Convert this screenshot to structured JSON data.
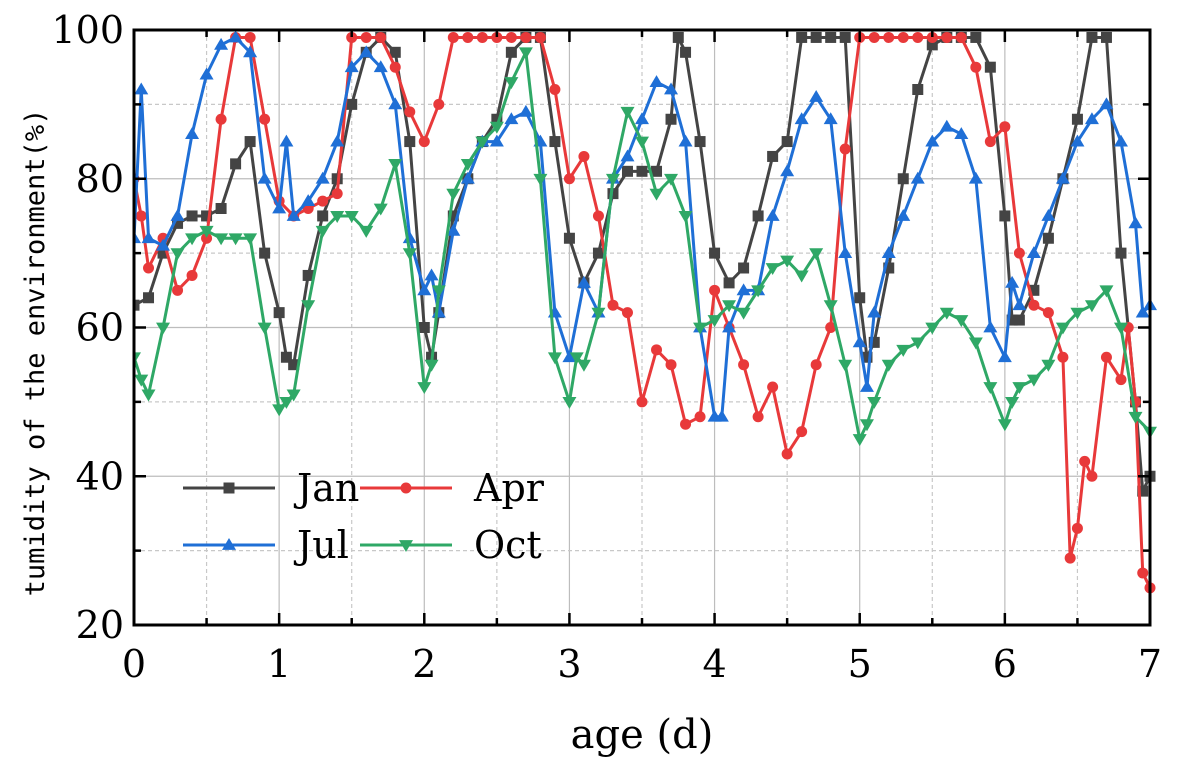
{
  "chart_data": {
    "type": "line",
    "xlabel": "age (d)",
    "ylabel": "tumidity of the environment(%)",
    "xlim": [
      0,
      7
    ],
    "ylim": [
      20,
      100
    ],
    "x_ticks": [
      0,
      1,
      2,
      3,
      4,
      5,
      6,
      7
    ],
    "y_ticks": [
      20,
      40,
      60,
      80,
      100
    ],
    "grid": true,
    "legend_position": "lower-left",
    "series": [
      {
        "name": "Jan",
        "color": "#444444",
        "marker": "square",
        "points": [
          [
            0.0,
            63
          ],
          [
            0.1,
            64
          ],
          [
            0.2,
            70
          ],
          [
            0.3,
            74
          ],
          [
            0.4,
            75
          ],
          [
            0.5,
            75
          ],
          [
            0.6,
            76
          ],
          [
            0.7,
            82
          ],
          [
            0.8,
            85
          ],
          [
            0.9,
            70
          ],
          [
            1.0,
            62
          ],
          [
            1.05,
            56
          ],
          [
            1.1,
            55
          ],
          [
            1.2,
            67
          ],
          [
            1.3,
            75
          ],
          [
            1.4,
            80
          ],
          [
            1.5,
            90
          ],
          [
            1.6,
            97
          ],
          [
            1.7,
            99
          ],
          [
            1.8,
            97
          ],
          [
            1.9,
            85
          ],
          [
            2.0,
            60
          ],
          [
            2.05,
            56
          ],
          [
            2.1,
            62
          ],
          [
            2.2,
            75
          ],
          [
            2.3,
            80
          ],
          [
            2.4,
            85
          ],
          [
            2.5,
            88
          ],
          [
            2.6,
            97
          ],
          [
            2.7,
            99
          ],
          [
            2.8,
            99
          ],
          [
            2.9,
            85
          ],
          [
            3.0,
            72
          ],
          [
            3.1,
            66
          ],
          [
            3.2,
            70
          ],
          [
            3.3,
            78
          ],
          [
            3.4,
            81
          ],
          [
            3.5,
            81
          ],
          [
            3.6,
            81
          ],
          [
            3.7,
            88
          ],
          [
            3.75,
            99
          ],
          [
            3.8,
            97
          ],
          [
            3.9,
            85
          ],
          [
            4.0,
            70
          ],
          [
            4.1,
            66
          ],
          [
            4.2,
            68
          ],
          [
            4.3,
            75
          ],
          [
            4.4,
            83
          ],
          [
            4.5,
            85
          ],
          [
            4.6,
            99
          ],
          [
            4.7,
            99
          ],
          [
            4.8,
            99
          ],
          [
            4.9,
            99
          ],
          [
            5.0,
            64
          ],
          [
            5.05,
            56
          ],
          [
            5.1,
            58
          ],
          [
            5.2,
            68
          ],
          [
            5.3,
            80
          ],
          [
            5.4,
            92
          ],
          [
            5.5,
            98
          ],
          [
            5.6,
            99
          ],
          [
            5.7,
            99
          ],
          [
            5.8,
            99
          ],
          [
            5.9,
            95
          ],
          [
            6.0,
            75
          ],
          [
            6.05,
            61
          ],
          [
            6.1,
            61
          ],
          [
            6.2,
            65
          ],
          [
            6.3,
            72
          ],
          [
            6.4,
            80
          ],
          [
            6.5,
            88
          ],
          [
            6.6,
            99
          ],
          [
            6.7,
            99
          ],
          [
            6.8,
            70
          ],
          [
            6.9,
            50
          ],
          [
            6.95,
            38
          ],
          [
            7.0,
            40
          ]
        ]
      },
      {
        "name": "Apr",
        "color": "#e8393a",
        "marker": "circle",
        "points": [
          [
            0.0,
            80
          ],
          [
            0.05,
            75
          ],
          [
            0.1,
            68
          ],
          [
            0.2,
            72
          ],
          [
            0.3,
            65
          ],
          [
            0.4,
            67
          ],
          [
            0.5,
            72
          ],
          [
            0.6,
            88
          ],
          [
            0.7,
            99
          ],
          [
            0.8,
            99
          ],
          [
            0.9,
            88
          ],
          [
            1.0,
            77
          ],
          [
            1.1,
            75
          ],
          [
            1.2,
            76
          ],
          [
            1.3,
            77
          ],
          [
            1.4,
            78
          ],
          [
            1.5,
            99
          ],
          [
            1.6,
            99
          ],
          [
            1.7,
            99
          ],
          [
            1.8,
            95
          ],
          [
            1.9,
            89
          ],
          [
            2.0,
            85
          ],
          [
            2.1,
            90
          ],
          [
            2.2,
            99
          ],
          [
            2.3,
            99
          ],
          [
            2.4,
            99
          ],
          [
            2.5,
            99
          ],
          [
            2.6,
            99
          ],
          [
            2.7,
            99
          ],
          [
            2.8,
            99
          ],
          [
            2.9,
            92
          ],
          [
            3.0,
            80
          ],
          [
            3.1,
            83
          ],
          [
            3.2,
            75
          ],
          [
            3.3,
            63
          ],
          [
            3.4,
            62
          ],
          [
            3.5,
            50
          ],
          [
            3.6,
            57
          ],
          [
            3.7,
            55
          ],
          [
            3.8,
            47
          ],
          [
            3.9,
            48
          ],
          [
            4.0,
            65
          ],
          [
            4.1,
            60
          ],
          [
            4.2,
            55
          ],
          [
            4.3,
            48
          ],
          [
            4.4,
            52
          ],
          [
            4.5,
            43
          ],
          [
            4.6,
            46
          ],
          [
            4.7,
            55
          ],
          [
            4.8,
            60
          ],
          [
            4.9,
            84
          ],
          [
            5.0,
            99
          ],
          [
            5.1,
            99
          ],
          [
            5.2,
            99
          ],
          [
            5.3,
            99
          ],
          [
            5.4,
            99
          ],
          [
            5.5,
            99
          ],
          [
            5.6,
            99
          ],
          [
            5.7,
            99
          ],
          [
            5.8,
            95
          ],
          [
            5.9,
            85
          ],
          [
            6.0,
            87
          ],
          [
            6.1,
            70
          ],
          [
            6.2,
            63
          ],
          [
            6.3,
            62
          ],
          [
            6.4,
            56
          ],
          [
            6.45,
            29
          ],
          [
            6.5,
            33
          ],
          [
            6.55,
            42
          ],
          [
            6.6,
            40
          ],
          [
            6.7,
            56
          ],
          [
            6.8,
            53
          ],
          [
            6.85,
            60
          ],
          [
            6.9,
            50
          ],
          [
            6.95,
            27
          ],
          [
            7.0,
            25
          ]
        ]
      },
      {
        "name": "Jul",
        "color": "#1f6fd6",
        "marker": "triangle-up",
        "points": [
          [
            0.0,
            72
          ],
          [
            0.05,
            92
          ],
          [
            0.1,
            72
          ],
          [
            0.2,
            71
          ],
          [
            0.3,
            75
          ],
          [
            0.4,
            86
          ],
          [
            0.5,
            94
          ],
          [
            0.6,
            98
          ],
          [
            0.7,
            99
          ],
          [
            0.8,
            97
          ],
          [
            0.9,
            80
          ],
          [
            1.0,
            76
          ],
          [
            1.05,
            85
          ],
          [
            1.1,
            75
          ],
          [
            1.2,
            77
          ],
          [
            1.3,
            80
          ],
          [
            1.4,
            85
          ],
          [
            1.5,
            95
          ],
          [
            1.6,
            97
          ],
          [
            1.7,
            95
          ],
          [
            1.8,
            90
          ],
          [
            1.9,
            72
          ],
          [
            2.0,
            65
          ],
          [
            2.05,
            67
          ],
          [
            2.1,
            62
          ],
          [
            2.2,
            73
          ],
          [
            2.3,
            80
          ],
          [
            2.4,
            85
          ],
          [
            2.5,
            85
          ],
          [
            2.6,
            88
          ],
          [
            2.7,
            89
          ],
          [
            2.8,
            85
          ],
          [
            2.9,
            62
          ],
          [
            3.0,
            56
          ],
          [
            3.1,
            66
          ],
          [
            3.2,
            62
          ],
          [
            3.3,
            80
          ],
          [
            3.4,
            83
          ],
          [
            3.5,
            88
          ],
          [
            3.6,
            93
          ],
          [
            3.7,
            92
          ],
          [
            3.8,
            85
          ],
          [
            3.9,
            60
          ],
          [
            4.0,
            48
          ],
          [
            4.05,
            48
          ],
          [
            4.1,
            60
          ],
          [
            4.2,
            65
          ],
          [
            4.3,
            65
          ],
          [
            4.4,
            75
          ],
          [
            4.5,
            81
          ],
          [
            4.6,
            88
          ],
          [
            4.7,
            91
          ],
          [
            4.8,
            88
          ],
          [
            4.9,
            70
          ],
          [
            5.0,
            58
          ],
          [
            5.05,
            52
          ],
          [
            5.1,
            62
          ],
          [
            5.2,
            70
          ],
          [
            5.3,
            75
          ],
          [
            5.4,
            80
          ],
          [
            5.5,
            85
          ],
          [
            5.6,
            87
          ],
          [
            5.7,
            86
          ],
          [
            5.8,
            80
          ],
          [
            5.9,
            60
          ],
          [
            6.0,
            56
          ],
          [
            6.05,
            66
          ],
          [
            6.1,
            63
          ],
          [
            6.2,
            70
          ],
          [
            6.3,
            75
          ],
          [
            6.4,
            80
          ],
          [
            6.5,
            85
          ],
          [
            6.6,
            88
          ],
          [
            6.7,
            90
          ],
          [
            6.8,
            85
          ],
          [
            6.9,
            74
          ],
          [
            6.95,
            62
          ],
          [
            7.0,
            63
          ]
        ]
      },
      {
        "name": "Oct",
        "color": "#2fa866",
        "marker": "triangle-down",
        "points": [
          [
            0.0,
            56
          ],
          [
            0.05,
            53
          ],
          [
            0.1,
            51
          ],
          [
            0.2,
            60
          ],
          [
            0.3,
            70
          ],
          [
            0.4,
            72
          ],
          [
            0.5,
            73
          ],
          [
            0.6,
            72
          ],
          [
            0.7,
            72
          ],
          [
            0.8,
            72
          ],
          [
            0.9,
            60
          ],
          [
            1.0,
            49
          ],
          [
            1.05,
            50
          ],
          [
            1.1,
            51
          ],
          [
            1.2,
            63
          ],
          [
            1.3,
            73
          ],
          [
            1.4,
            75
          ],
          [
            1.5,
            75
          ],
          [
            1.6,
            73
          ],
          [
            1.7,
            76
          ],
          [
            1.8,
            82
          ],
          [
            1.9,
            70
          ],
          [
            2.0,
            52
          ],
          [
            2.05,
            55
          ],
          [
            2.1,
            65
          ],
          [
            2.2,
            78
          ],
          [
            2.3,
            82
          ],
          [
            2.4,
            85
          ],
          [
            2.5,
            87
          ],
          [
            2.6,
            93
          ],
          [
            2.7,
            97
          ],
          [
            2.8,
            80
          ],
          [
            2.9,
            56
          ],
          [
            3.0,
            50
          ],
          [
            3.05,
            56
          ],
          [
            3.1,
            55
          ],
          [
            3.2,
            62
          ],
          [
            3.3,
            80
          ],
          [
            3.4,
            89
          ],
          [
            3.5,
            85
          ],
          [
            3.6,
            78
          ],
          [
            3.7,
            80
          ],
          [
            3.8,
            75
          ],
          [
            3.9,
            60
          ],
          [
            4.0,
            61
          ],
          [
            4.1,
            63
          ],
          [
            4.2,
            62
          ],
          [
            4.3,
            65
          ],
          [
            4.4,
            68
          ],
          [
            4.5,
            69
          ],
          [
            4.6,
            67
          ],
          [
            4.7,
            70
          ],
          [
            4.8,
            63
          ],
          [
            4.9,
            55
          ],
          [
            5.0,
            45
          ],
          [
            5.05,
            47
          ],
          [
            5.1,
            50
          ],
          [
            5.2,
            55
          ],
          [
            5.3,
            57
          ],
          [
            5.4,
            58
          ],
          [
            5.5,
            60
          ],
          [
            5.6,
            62
          ],
          [
            5.7,
            61
          ],
          [
            5.8,
            58
          ],
          [
            5.9,
            52
          ],
          [
            6.0,
            47
          ],
          [
            6.05,
            50
          ],
          [
            6.1,
            52
          ],
          [
            6.2,
            53
          ],
          [
            6.3,
            55
          ],
          [
            6.4,
            60
          ],
          [
            6.5,
            62
          ],
          [
            6.6,
            63
          ],
          [
            6.7,
            65
          ],
          [
            6.8,
            60
          ],
          [
            6.9,
            48
          ],
          [
            7.0,
            46
          ]
        ]
      }
    ]
  }
}
